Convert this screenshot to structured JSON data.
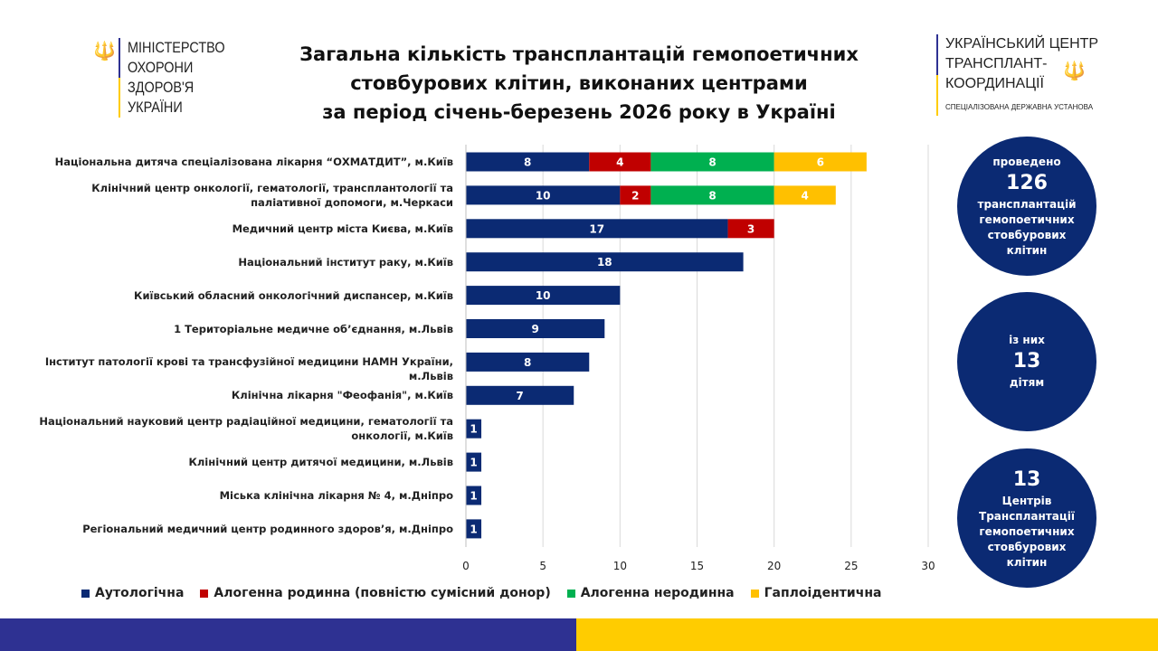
{
  "header": {
    "ministry_logo": "МІНІСТЕРСТВО ОХОРОНИ ЗДОРОВ'Я УКРАЇНИ",
    "ministry_lines": [
      "МІНІСТЕРСТВО",
      "ОХОРОНИ",
      "ЗДОРОВ'Я",
      "УКРАЇНИ"
    ],
    "center_logo_lines": [
      "УКРАЇНСЬКИЙ ЦЕНТР",
      "ТРАНСПЛАНТ-",
      "КООРДИНАЦІЇ"
    ],
    "center_logo_sub": "СПЕЦІАЛІЗОВАНА ДЕРЖАВНА УСТАНОВА"
  },
  "chart_data": {
    "type": "bar",
    "orientation": "horizontal",
    "stacked": true,
    "title": "Загальна кількість трансплантацій гемопоетичних стовбурових клітин, виконаних центрами за період січень-березень 2026 року в Україні",
    "title_lines": [
      "Загальна  кількість трансплантацій  гемопоетичних",
      "стовбурових клітин, виконаних центрами",
      "за період січень-березень 2026 року в Україні"
    ],
    "categories": [
      "Національна дитяча спеціалізована лікарня “ОХМАТДИТ”, м.Київ",
      "Клінічний центр онкології, гематології, трансплантології та паліативної допомоги, м.Черкаси",
      "Медичний центр міста Києва, м.Київ",
      "Національний інститут раку, м.Київ",
      "Київський  обласний онкологічний диспансер, м.Київ",
      "1 Територіальне медичне об’єднання, м.Львів",
      "Інститут патології крові та трансфузійної медицини НАМН України, м.Львів",
      "Клінічна лікарня \"Феофанія\", м.Київ",
      "Національний науковий центр радіаційної медицини, гематології та онкології, м.Київ",
      "Клінічний центр дитячої медицини, м.Львів",
      "Міська клінічна лікарня № 4, м.Дніпро",
      "Регіональний медичний центр родинного здоров’я, м.Дніпро"
    ],
    "series": [
      {
        "name": "Аутологічна",
        "color": "#0b2a73",
        "values": [
          8,
          10,
          17,
          18,
          10,
          9,
          8,
          7,
          1,
          1,
          1,
          1
        ]
      },
      {
        "name": "Алогенна родинна (повністю сумісний донор)",
        "color": "#c00000",
        "values": [
          4,
          2,
          3,
          0,
          0,
          0,
          0,
          0,
          0,
          0,
          0,
          0
        ]
      },
      {
        "name": "Алогенна неродинна",
        "color": "#00b050",
        "values": [
          8,
          8,
          0,
          0,
          0,
          0,
          0,
          0,
          0,
          0,
          0,
          0
        ]
      },
      {
        "name": "Гаплоідентична",
        "color": "#ffc000",
        "values": [
          6,
          4,
          0,
          0,
          0,
          0,
          0,
          0,
          0,
          0,
          0,
          0
        ]
      }
    ],
    "xlim": [
      0,
      30
    ],
    "xticks": [
      0,
      5,
      10,
      15,
      20,
      25,
      30
    ],
    "grid": true,
    "legend_position": "bottom"
  },
  "stats": [
    {
      "top": "проведено",
      "big": "126",
      "bottom": [
        "трансплантацій",
        "гемопоетичних",
        "стовбурових",
        "клітин"
      ]
    },
    {
      "top": "із них",
      "big": "13",
      "bottom": [
        "дітям"
      ]
    },
    {
      "top": "",
      "big": "13",
      "bottom": [
        "Центрів",
        "Трансплантації",
        "гемопоетичних",
        "стовбурових",
        "клітин"
      ]
    }
  ],
  "colors": {
    "footer_blue": "#2e3192",
    "footer_yellow": "#ffcc00"
  }
}
